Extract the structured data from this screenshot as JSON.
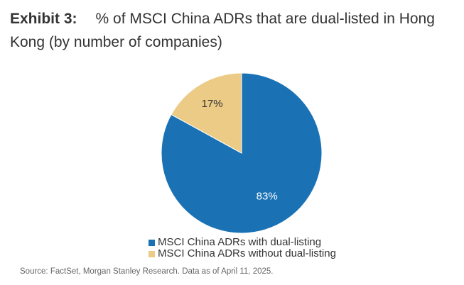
{
  "header": {
    "exhibit": "Exhibit 3:",
    "title": "% of MSCI China ADRs that are dual-listed in Hong Kong (by number of companies)"
  },
  "chart_data": {
    "type": "pie",
    "title": "% of MSCI China ADRs that are dual-listed in Hong Kong (by number of companies)",
    "slices": [
      {
        "name": "MSCI China ADRs with dual-listing",
        "value": 83,
        "label": "83%",
        "color": "#1a72b5"
      },
      {
        "name": "MSCI China ADRs without dual-listing",
        "value": 17,
        "label": "17%",
        "color": "#ebcb85"
      }
    ],
    "legend_position": "bottom"
  },
  "footer": {
    "source": "Source: FactSet, Morgan Stanley Research. Data as of April 11, 2025."
  }
}
